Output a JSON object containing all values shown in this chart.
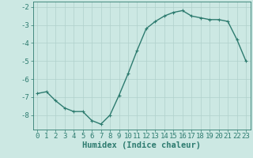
{
  "x": [
    0,
    1,
    2,
    3,
    4,
    5,
    6,
    7,
    8,
    9,
    10,
    11,
    12,
    13,
    14,
    15,
    16,
    17,
    18,
    19,
    20,
    21,
    22,
    23
  ],
  "y": [
    -6.8,
    -6.7,
    -7.2,
    -7.6,
    -7.8,
    -7.8,
    -8.3,
    -8.5,
    -8.0,
    -6.9,
    -5.7,
    -4.4,
    -3.2,
    -2.8,
    -2.5,
    -2.3,
    -2.2,
    -2.5,
    -2.6,
    -2.7,
    -2.7,
    -2.8,
    -3.8,
    -5.0
  ],
  "xlim": [
    -0.5,
    23.5
  ],
  "ylim": [
    -8.8,
    -1.7
  ],
  "yticks": [
    -2,
    -3,
    -4,
    -5,
    -6,
    -7,
    -8
  ],
  "xticks": [
    0,
    1,
    2,
    3,
    4,
    5,
    6,
    7,
    8,
    9,
    10,
    11,
    12,
    13,
    14,
    15,
    16,
    17,
    18,
    19,
    20,
    21,
    22,
    23
  ],
  "xlabel": "Humidex (Indice chaleur)",
  "line_color": "#2d7b6f",
  "bg_color": "#cce8e3",
  "grid_color": "#b0d0cc",
  "marker": "+",
  "marker_size": 3,
  "linewidth": 1.0,
  "tick_fontsize": 6.5,
  "xlabel_fontsize": 7.5
}
